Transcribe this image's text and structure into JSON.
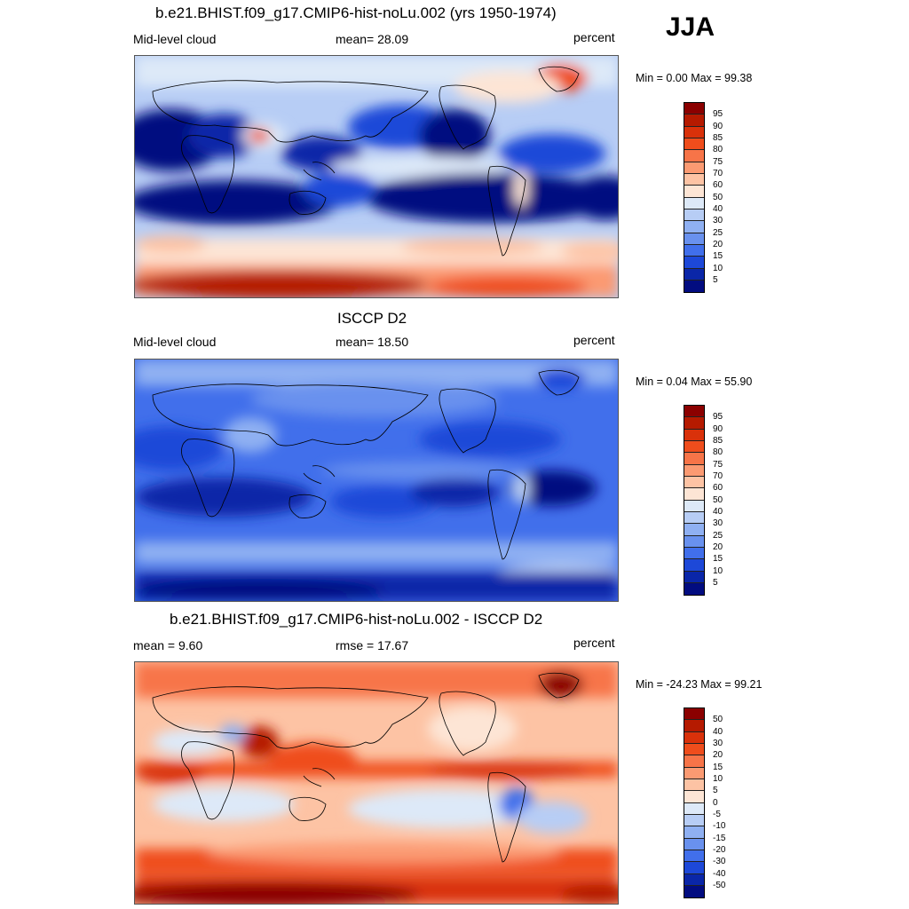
{
  "season": "JJA",
  "panels": [
    {
      "id": "model",
      "title": "b.e21.BHIST.f09_g17.CMIP6-hist-noLu.002 (yrs 1950-1974)",
      "left_label": "Mid-level cloud",
      "center_label": "mean=  28.09",
      "right_label": "percent",
      "minmax": "Min =   0.00 Max =  99.38",
      "colorbar": {
        "labels": [
          "95",
          "90",
          "85",
          "80",
          "75",
          "70",
          "60",
          "50",
          "40",
          "30",
          "25",
          "20",
          "15",
          "10",
          "5"
        ],
        "colors": [
          "#8b0000",
          "#b51a00",
          "#d9310a",
          "#ef4d1c",
          "#f77448",
          "#fb9a72",
          "#fdc3a4",
          "#fde5d5",
          "#dde9f8",
          "#b7cdf5",
          "#8fb0f2",
          "#6991ee",
          "#416feb",
          "#1d48d8",
          "#0a26a8",
          "#020c80"
        ]
      }
    },
    {
      "id": "obs",
      "title": "ISCCP D2",
      "left_label": "Mid-level cloud",
      "center_label": "mean=  18.50",
      "right_label": "percent",
      "minmax": "Min =   0.04 Max =  55.90",
      "colorbar": {
        "labels": [
          "95",
          "90",
          "85",
          "80",
          "75",
          "70",
          "60",
          "50",
          "40",
          "30",
          "25",
          "20",
          "15",
          "10",
          "5"
        ],
        "colors": [
          "#8b0000",
          "#b51a00",
          "#d9310a",
          "#ef4d1c",
          "#f77448",
          "#fb9a72",
          "#fdc3a4",
          "#fde5d5",
          "#dde9f8",
          "#b7cdf5",
          "#8fb0f2",
          "#6991ee",
          "#416feb",
          "#1d48d8",
          "#0a26a8",
          "#020c80"
        ]
      }
    },
    {
      "id": "diff",
      "title": "b.e21.BHIST.f09_g17.CMIP6-hist-noLu.002 - ISCCP D2",
      "left_label": "mean =   9.60",
      "center_label": "rmse =  17.67",
      "right_label": "percent",
      "minmax": "Min = -24.23 Max =  99.21",
      "colorbar": {
        "labels": [
          "50",
          "40",
          "30",
          "20",
          "15",
          "10",
          "5",
          "0",
          "-5",
          "-10",
          "-15",
          "-20",
          "-30",
          "-40",
          "-50"
        ],
        "colors": [
          "#8b0000",
          "#b51a00",
          "#d9310a",
          "#ef4d1c",
          "#f77448",
          "#fb9a72",
          "#fdc3a4",
          "#fde5d5",
          "#dde9f8",
          "#b7cdf5",
          "#8fb0f2",
          "#6991ee",
          "#416feb",
          "#1d48d8",
          "#0a26a8",
          "#020c80"
        ]
      }
    }
  ]
}
